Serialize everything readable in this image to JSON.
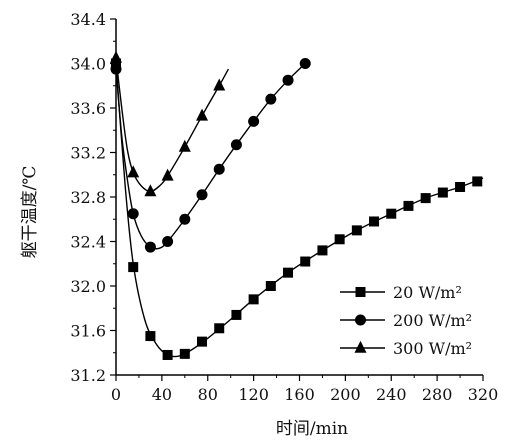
{
  "chart_data": {
    "type": "line",
    "xlabel": "时间/min",
    "ylabel": "躯干温度/℃",
    "xlim": [
      0,
      320
    ],
    "ylim": [
      31.2,
      34.4
    ],
    "x_ticks": [
      0,
      40,
      80,
      120,
      160,
      200,
      240,
      280,
      320
    ],
    "y_ticks": [
      31.2,
      31.6,
      32.0,
      32.4,
      32.8,
      33.2,
      33.6,
      34.0,
      34.4
    ],
    "grid": false,
    "legend_position": "bottom-right",
    "series": [
      {
        "name": "20 W/m²",
        "marker": "square",
        "points": [
          [
            0,
            34.0
          ],
          [
            15,
            32.17
          ],
          [
            30,
            31.55
          ],
          [
            45,
            31.38
          ],
          [
            60,
            31.39
          ],
          [
            75,
            31.5
          ],
          [
            90,
            31.62
          ],
          [
            105,
            31.74
          ],
          [
            120,
            31.88
          ],
          [
            135,
            32.0
          ],
          [
            150,
            32.12
          ],
          [
            165,
            32.22
          ],
          [
            180,
            32.32
          ],
          [
            195,
            32.42
          ],
          [
            210,
            32.5
          ],
          [
            225,
            32.58
          ],
          [
            240,
            32.65
          ],
          [
            255,
            32.72
          ],
          [
            270,
            32.79
          ],
          [
            285,
            32.84
          ],
          [
            300,
            32.89
          ],
          [
            315,
            32.94
          ]
        ],
        "curve": [
          [
            0,
            34.0
          ],
          [
            8,
            32.9
          ],
          [
            15,
            32.2
          ],
          [
            25,
            31.7
          ],
          [
            35,
            31.48
          ],
          [
            45,
            31.38
          ],
          [
            55,
            31.37
          ],
          [
            65,
            31.42
          ],
          [
            80,
            31.53
          ],
          [
            100,
            31.7
          ],
          [
            120,
            31.88
          ],
          [
            150,
            32.12
          ],
          [
            180,
            32.32
          ],
          [
            210,
            32.5
          ],
          [
            240,
            32.65
          ],
          [
            270,
            32.79
          ],
          [
            300,
            32.89
          ],
          [
            320,
            32.97
          ]
        ]
      },
      {
        "name": "200 W/m²",
        "marker": "circle",
        "points": [
          [
            0,
            33.95
          ],
          [
            15,
            32.65
          ],
          [
            30,
            32.35
          ],
          [
            45,
            32.4
          ],
          [
            60,
            32.6
          ],
          [
            75,
            32.82
          ],
          [
            90,
            33.05
          ],
          [
            105,
            33.27
          ],
          [
            120,
            33.48
          ],
          [
            135,
            33.68
          ],
          [
            150,
            33.85
          ],
          [
            165,
            34.0
          ]
        ],
        "curve": [
          [
            0,
            33.95
          ],
          [
            5,
            33.35
          ],
          [
            10,
            32.95
          ],
          [
            15,
            32.65
          ],
          [
            22,
            32.45
          ],
          [
            30,
            32.35
          ],
          [
            38,
            32.34
          ],
          [
            45,
            32.4
          ],
          [
            60,
            32.6
          ],
          [
            75,
            32.82
          ],
          [
            90,
            33.05
          ],
          [
            105,
            33.27
          ],
          [
            120,
            33.48
          ],
          [
            135,
            33.68
          ],
          [
            150,
            33.85
          ],
          [
            165,
            34.0
          ]
        ]
      },
      {
        "name": "300 W/m²",
        "marker": "triangle",
        "points": [
          [
            0,
            34.05
          ],
          [
            15,
            33.02
          ],
          [
            30,
            32.85
          ],
          [
            45,
            32.99
          ],
          [
            60,
            33.25
          ],
          [
            75,
            33.53
          ],
          [
            90,
            33.8
          ]
        ],
        "curve": [
          [
            0,
            34.05
          ],
          [
            5,
            33.6
          ],
          [
            10,
            33.22
          ],
          [
            15,
            33.02
          ],
          [
            22,
            32.9
          ],
          [
            30,
            32.85
          ],
          [
            38,
            32.9
          ],
          [
            45,
            32.99
          ],
          [
            60,
            33.25
          ],
          [
            75,
            33.53
          ],
          [
            90,
            33.8
          ],
          [
            98,
            33.95
          ]
        ]
      }
    ]
  }
}
